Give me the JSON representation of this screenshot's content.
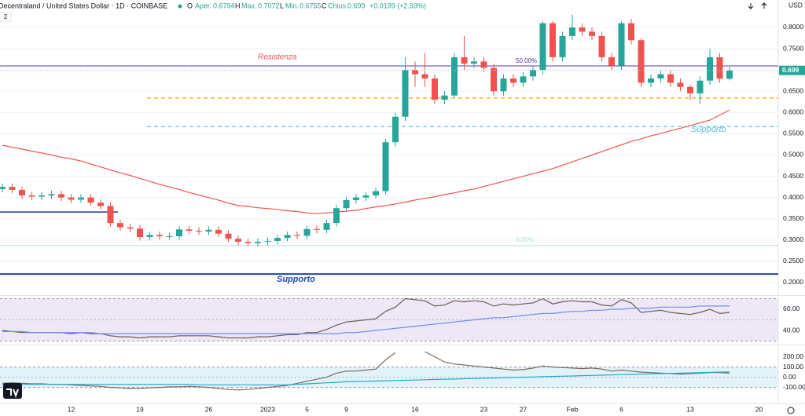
{
  "header": {
    "symbol": "Decentraland / United States Dollar · 1D · COINBASE",
    "o_label": "O",
    "open_label": "Aper.",
    "h_label": "H",
    "high_label": "Max.",
    "l_label": "Min.",
    "l_key": "L",
    "c_label": "C",
    "close_label": "Chius.",
    "change": "+0.0199 (+2.93%)",
    "indicator_count": "2",
    "currency": "USD"
  },
  "chart_data": [
    {
      "type": "candlestick",
      "up_color": "#26a69a",
      "down_color": "#ef5350",
      "categories": [
        null,
        null,
        null,
        null,
        null,
        null,
        null,
        "12",
        null,
        null,
        null,
        null,
        null,
        null,
        "19",
        null,
        null,
        null,
        null,
        null,
        null,
        "26",
        null,
        null,
        null,
        null,
        null,
        "2023",
        null,
        null,
        null,
        "5",
        null,
        null,
        null,
        "9",
        null,
        null,
        null,
        null,
        null,
        null,
        "16",
        null,
        null,
        null,
        null,
        null,
        null,
        "23",
        null,
        null,
        null,
        "27",
        null,
        null,
        null,
        null,
        "Feb",
        null,
        null,
        null,
        null,
        "6",
        null,
        null,
        null,
        null,
        null,
        null,
        "13",
        null,
        null,
        null,
        null,
        null,
        null,
        "20",
        null
      ],
      "open": [
        0.42,
        0.425,
        0.418,
        0.405,
        0.402,
        0.405,
        0.408,
        0.4,
        0.395,
        0.4,
        0.388,
        0.38,
        0.34,
        0.33,
        0.327,
        0.307,
        0.312,
        0.309,
        0.309,
        0.325,
        0.322,
        0.32,
        0.324,
        0.315,
        0.303,
        0.296,
        0.293,
        0.296,
        0.298,
        0.305,
        0.312,
        0.31,
        0.326,
        0.324,
        0.34,
        0.375,
        0.394,
        0.4,
        0.405,
        0.415,
        0.53,
        0.59,
        0.7,
        0.69,
        0.68,
        0.63,
        0.64,
        0.73,
        0.715,
        0.72,
        0.705,
        0.65,
        0.68,
        0.67,
        0.685,
        0.7,
        0.81,
        0.73,
        0.78,
        0.8,
        0.79,
        0.78,
        0.73,
        0.71,
        0.81,
        0.77,
        0.67,
        0.68,
        0.69,
        0.67,
        0.66,
        0.645,
        0.675,
        0.73,
        0.6794,
        null,
        null,
        null,
        null
      ],
      "high": [
        0.433,
        0.433,
        0.426,
        0.413,
        0.413,
        0.416,
        0.416,
        0.408,
        0.408,
        0.408,
        0.396,
        0.388,
        0.348,
        0.338,
        0.335,
        0.32,
        0.32,
        0.317,
        0.333,
        0.333,
        0.33,
        0.332,
        0.332,
        0.323,
        0.311,
        0.304,
        0.304,
        0.306,
        0.313,
        0.32,
        0.32,
        0.334,
        0.334,
        0.348,
        0.383,
        0.402,
        0.408,
        0.413,
        0.423,
        0.538,
        0.6,
        0.73,
        0.72,
        0.74,
        0.69,
        0.65,
        0.74,
        0.78,
        0.73,
        0.73,
        0.715,
        0.69,
        0.69,
        0.695,
        0.71,
        0.815,
        0.815,
        0.79,
        0.83,
        0.81,
        0.8,
        0.79,
        0.74,
        0.815,
        0.82,
        0.775,
        0.69,
        0.7,
        0.7,
        0.68,
        0.665,
        0.685,
        0.75,
        0.74,
        0.7072,
        null,
        null,
        null,
        null
      ],
      "low": [
        0.412,
        0.41,
        0.397,
        0.394,
        0.394,
        0.397,
        0.392,
        0.387,
        0.387,
        0.38,
        0.372,
        0.332,
        0.322,
        0.319,
        0.299,
        0.299,
        0.301,
        0.301,
        0.301,
        0.314,
        0.312,
        0.312,
        0.307,
        0.295,
        0.288,
        0.285,
        0.285,
        0.288,
        0.29,
        0.297,
        0.302,
        0.302,
        0.316,
        0.316,
        0.332,
        0.367,
        0.386,
        0.392,
        0.397,
        0.407,
        0.52,
        0.58,
        0.66,
        0.66,
        0.62,
        0.62,
        0.635,
        0.7,
        0.705,
        0.695,
        0.64,
        0.64,
        0.66,
        0.66,
        0.675,
        0.69,
        0.72,
        0.72,
        0.77,
        0.78,
        0.77,
        0.72,
        0.7,
        0.7,
        0.76,
        0.66,
        0.66,
        0.67,
        0.66,
        0.65,
        0.63,
        0.62,
        0.665,
        0.67,
        0.6755,
        null,
        null,
        null,
        null
      ],
      "close": [
        0.425,
        0.418,
        0.405,
        0.402,
        0.405,
        0.408,
        0.4,
        0.395,
        0.4,
        0.388,
        0.38,
        0.34,
        0.33,
        0.327,
        0.307,
        0.312,
        0.309,
        0.309,
        0.325,
        0.322,
        0.32,
        0.324,
        0.315,
        0.303,
        0.296,
        0.293,
        0.296,
        0.298,
        0.305,
        0.312,
        0.31,
        0.326,
        0.324,
        0.34,
        0.375,
        0.394,
        0.4,
        0.405,
        0.415,
        0.53,
        0.59,
        0.7,
        0.69,
        0.68,
        0.63,
        0.64,
        0.73,
        0.715,
        0.72,
        0.705,
        0.65,
        0.68,
        0.67,
        0.685,
        0.7,
        0.81,
        0.73,
        0.78,
        0.8,
        0.79,
        0.78,
        0.73,
        0.71,
        0.81,
        0.77,
        0.67,
        0.68,
        0.69,
        0.67,
        0.66,
        0.645,
        0.675,
        0.73,
        0.6794,
        0.699,
        null,
        null,
        null,
        null
      ],
      "ma": {
        "color": "#f05350",
        "values": [
          0.523,
          0.518,
          0.514,
          0.509,
          0.505,
          0.5,
          0.495,
          0.491,
          0.486,
          0.479,
          0.472,
          0.465,
          0.458,
          0.452,
          0.445,
          0.438,
          0.431,
          0.425,
          0.419,
          0.412,
          0.406,
          0.4,
          0.394,
          0.387,
          0.381,
          0.379,
          0.376,
          0.374,
          0.372,
          0.369,
          0.367,
          0.364,
          0.362,
          0.364,
          0.366,
          0.368,
          0.37,
          0.374,
          0.378,
          0.381,
          0.385,
          0.389,
          0.394,
          0.398,
          0.402,
          0.407,
          0.411,
          0.416,
          0.42,
          0.426,
          0.432,
          0.438,
          0.444,
          0.45,
          0.456,
          0.462,
          0.468,
          0.476,
          0.484,
          0.492,
          0.5,
          0.508,
          0.516,
          0.524,
          0.532,
          0.538,
          0.545,
          0.551,
          0.557,
          0.563,
          0.569,
          0.576,
          0.582,
          0.594,
          0.606,
          null,
          null,
          null,
          null
        ]
      },
      "levels": [
        {
          "value": 0.7095,
          "color": "#5e35b1",
          "dashed": false
        },
        {
          "value": 0.634,
          "color": "#ff9800",
          "dashed": true
        },
        {
          "value": 0.567,
          "color": "#4dc4dc",
          "dashed": true
        },
        {
          "value": 0.366,
          "color": "#1a3a9a",
          "dashed": false
        },
        {
          "value": 0.22,
          "color": "#2445b0",
          "dashed": false
        },
        {
          "value": 0.287,
          "color": "#b2dfdb",
          "dashed": false
        }
      ],
      "annotations": [
        "Resistenza",
        "Supporto",
        "Supporto",
        "50.00%",
        "0.00%"
      ],
      "ylim": [
        0.1723,
        0.8646
      ],
      "yticks": [
        {
          "value": 0.2,
          "label": "0.2000"
        },
        {
          "value": 0.25,
          "label": "0.2500"
        },
        {
          "value": 0.3,
          "label": "0.3000"
        },
        {
          "value": 0.35,
          "label": "0.3500"
        },
        {
          "value": 0.4,
          "label": "0.4000"
        },
        {
          "value": 0.45,
          "label": "0.4500"
        },
        {
          "value": 0.5,
          "label": "0.5000"
        },
        {
          "value": 0.55,
          "label": "0.5500"
        },
        {
          "value": 0.6,
          "label": "0.6000"
        },
        {
          "value": 0.65,
          "label": "0.6500"
        },
        {
          "value": 0.7,
          "label": "0.7000"
        },
        {
          "value": 0.75,
          "label": "0.7500"
        },
        {
          "value": 0.8,
          "label": "0.8000"
        }
      ],
      "grid": true
    },
    {
      "type": "line",
      "band": [
        30,
        70
      ],
      "band_mid": 50,
      "band_color": "#ede7f6",
      "series": [
        {
          "color": "#6d5d57",
          "values": [
            40,
            39,
            38,
            38,
            38,
            38,
            38,
            37,
            38,
            37,
            37,
            35,
            34,
            34,
            33,
            34,
            34,
            34,
            35,
            35,
            35,
            35,
            34,
            33,
            33,
            33,
            34,
            34,
            35,
            36,
            36,
            38,
            38,
            41,
            45,
            48,
            49,
            50,
            51,
            58,
            62,
            70,
            69,
            68,
            63,
            64,
            68,
            67,
            68,
            67,
            63,
            65,
            64,
            65,
            66,
            70,
            65,
            67,
            68,
            67,
            67,
            64,
            63,
            69,
            66,
            57,
            58,
            59,
            57,
            56,
            55,
            57,
            60,
            56,
            57,
            null,
            null,
            null,
            null
          ]
        },
        {
          "color": "#6d8ff0",
          "values": [
            39,
            39,
            39,
            38,
            38,
            38,
            38,
            38,
            38,
            38,
            37,
            37,
            37,
            37,
            37,
            37,
            37,
            37,
            37,
            37,
            37,
            37,
            37,
            37,
            37,
            37,
            37,
            37,
            37,
            37,
            37,
            37,
            37,
            37,
            37,
            38,
            38,
            39,
            40,
            41,
            42,
            43,
            44,
            45,
            46,
            47,
            48,
            49,
            50,
            51,
            52,
            52,
            53,
            54,
            55,
            56,
            56,
            57,
            58,
            58,
            59,
            59,
            60,
            60,
            61,
            61,
            61,
            62,
            62,
            62,
            62,
            63,
            63,
            63,
            63,
            null,
            null,
            null,
            null
          ]
        }
      ],
      "ylim": [
        28.15,
        71.85
      ],
      "yticks": [
        {
          "value": 40,
          "label": "40.00"
        },
        {
          "value": 60,
          "label": "60.00"
        }
      ]
    },
    {
      "type": "line",
      "band": [
        -100,
        100
      ],
      "band_mid": 0,
      "band_color": "#e1f2f8",
      "series": [
        {
          "color": "#7b6a5e",
          "values": [
            -60,
            -55,
            -60,
            -65,
            -65,
            -70,
            -70,
            -75,
            -80,
            -85,
            -90,
            -100,
            -105,
            -110,
            -110,
            -105,
            -100,
            -95,
            -95,
            -90,
            -95,
            -100,
            -110,
            -120,
            -125,
            -120,
            -110,
            -100,
            -90,
            -80,
            -60,
            -40,
            -20,
            0,
            40,
            60,
            60,
            70,
            80,
            170,
            240,
            null,
            null,
            250,
            200,
            150,
            130,
            120,
            110,
            100,
            90,
            80,
            70,
            75,
            90,
            110,
            100,
            95,
            90,
            85,
            90,
            80,
            60,
            70,
            60,
            50,
            45,
            40,
            35,
            30,
            35,
            40,
            45,
            45,
            40,
            null,
            null,
            null,
            null
          ]
        },
        {
          "color": "#29a7cf",
          "values": [
            -70,
            -70,
            -70,
            -70,
            -70,
            -70,
            -70,
            -70,
            -70,
            -70,
            -70,
            -70,
            -70,
            -70,
            -70,
            -70,
            -70,
            -70,
            -70,
            -70,
            -75,
            -75,
            -75,
            -75,
            -75,
            -75,
            -75,
            -75,
            -75,
            -75,
            -70,
            -65,
            -60,
            -55,
            -50,
            -45,
            -42,
            -40,
            -38,
            -35,
            -32,
            -30,
            -28,
            -25,
            -22,
            -20,
            -18,
            -15,
            -12,
            -10,
            -8,
            -5,
            -2,
            0,
            2,
            5,
            8,
            10,
            12,
            15,
            18,
            20,
            22,
            25,
            28,
            30,
            32,
            35,
            38,
            40,
            42,
            45,
            48,
            50,
            52,
            null,
            null,
            null,
            null
          ]
        }
      ],
      "ylim": [
        -242,
        305
      ],
      "yticks": [
        {
          "value": -100,
          "label": "-100.00"
        },
        {
          "value": 0,
          "label": "0.00"
        },
        {
          "value": 100,
          "label": "100.00"
        },
        {
          "value": 200,
          "label": "200.00"
        }
      ]
    }
  ]
}
